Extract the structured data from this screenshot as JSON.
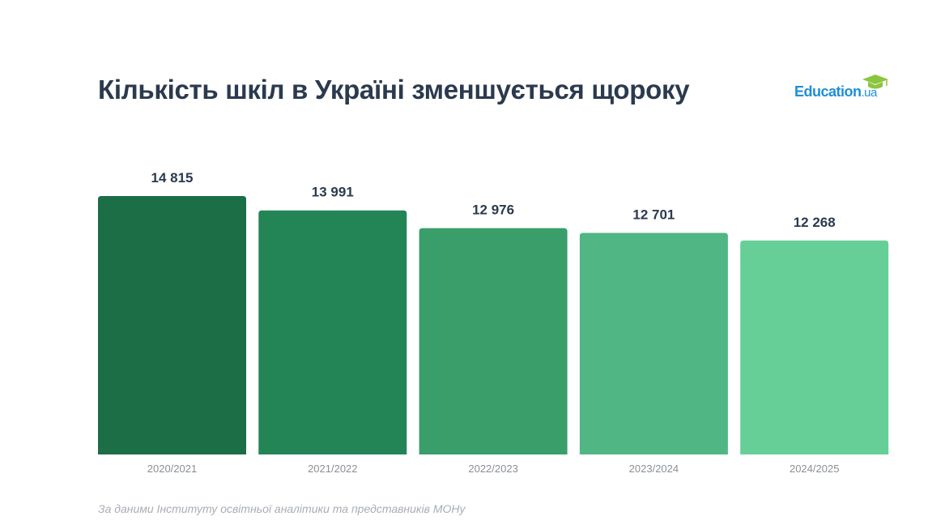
{
  "chart_data": {
    "type": "bar",
    "title": "Кількість шкіл в Україні зменшується щороку",
    "categories": [
      "2020/2021",
      "2021/2022",
      "2022/2023",
      "2023/2024",
      "2024/2025"
    ],
    "values": [
      14815,
      13991,
      12976,
      12701,
      12268
    ],
    "value_labels": [
      "14 815",
      "13 991",
      "12 976",
      "12 701",
      "12 268"
    ],
    "colors": [
      "#1b6e45",
      "#238555",
      "#3a9e6b",
      "#50b683",
      "#66cf98"
    ],
    "ylim": [
      0,
      14815
    ],
    "grid": false
  },
  "logo": {
    "main": "Education",
    "suffix": ".ua"
  },
  "source": "За даними Інституту освітньої аналітики та представників МОНу"
}
